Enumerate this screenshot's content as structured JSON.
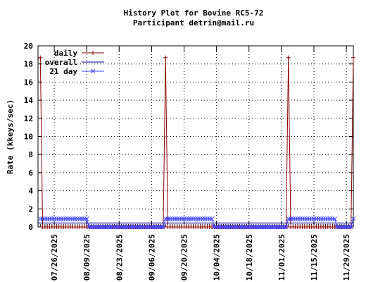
{
  "chart_data": {
    "type": "line",
    "title": "History Plot for Bovine RC5-72",
    "subtitle": "Participant detrin@mail.ru",
    "xlabel": "",
    "ylabel": "Rate (kkeys/sec)",
    "ylim": [
      0,
      20
    ],
    "yticks": [
      0,
      2,
      4,
      6,
      8,
      10,
      12,
      14,
      16,
      18,
      20
    ],
    "xlim": [
      "2025-07-19",
      "2025-12-02"
    ],
    "xtick_dates": [
      "2025-07-26",
      "2025-08-09",
      "2025-08-23",
      "2025-09-06",
      "2025-09-20",
      "2025-10-04",
      "2025-10-18",
      "2025-11-01",
      "2025-11-15",
      "2025-11-29"
    ],
    "xtick_labels": [
      "07/26/2025",
      "08/09/2025",
      "08/23/2025",
      "09/06/2025",
      "09/20/2025",
      "10/04/2025",
      "10/18/2025",
      "11/01/2025",
      "11/15/2025",
      "11/29/2025"
    ],
    "grid": true,
    "legend_position": "top-left",
    "series": [
      {
        "name": "daily",
        "color": "#8b0000",
        "marker": "plus",
        "points": [
          {
            "x": "2025-07-20",
            "y": 18.7
          },
          {
            "x": "2025-07-21",
            "y": 0.0
          },
          {
            "x": "2025-09-11",
            "y": 0.0
          },
          {
            "x": "2025-09-12",
            "y": 18.7
          },
          {
            "x": "2025-09-13",
            "y": 0.0
          },
          {
            "x": "2025-11-03",
            "y": 0.0
          },
          {
            "x": "2025-11-04",
            "y": 18.7
          },
          {
            "x": "2025-11-05",
            "y": 0.0
          },
          {
            "x": "2025-12-01",
            "y": 0.0
          },
          {
            "x": "2025-12-02",
            "y": 18.7
          }
        ]
      },
      {
        "name": "overall",
        "color": "#00008b",
        "marker": "none",
        "points": [
          {
            "x": "2025-07-19",
            "y": 0.45
          },
          {
            "x": "2025-12-02",
            "y": 0.45
          }
        ]
      },
      {
        "name": "21 day",
        "color": "#4040ff",
        "marker": "x",
        "points": [
          {
            "x": "2025-07-20",
            "y": 0.9
          },
          {
            "x": "2025-08-09",
            "y": 0.9
          },
          {
            "x": "2025-08-10",
            "y": 0.0
          },
          {
            "x": "2025-09-11",
            "y": 0.0
          },
          {
            "x": "2025-09-12",
            "y": 0.9
          },
          {
            "x": "2025-10-02",
            "y": 0.9
          },
          {
            "x": "2025-10-03",
            "y": 0.0
          },
          {
            "x": "2025-11-03",
            "y": 0.0
          },
          {
            "x": "2025-11-04",
            "y": 0.9
          },
          {
            "x": "2025-11-24",
            "y": 0.9
          },
          {
            "x": "2025-11-25",
            "y": 0.0
          },
          {
            "x": "2025-12-01",
            "y": 0.0
          },
          {
            "x": "2025-12-02",
            "y": 0.9
          }
        ]
      }
    ]
  }
}
